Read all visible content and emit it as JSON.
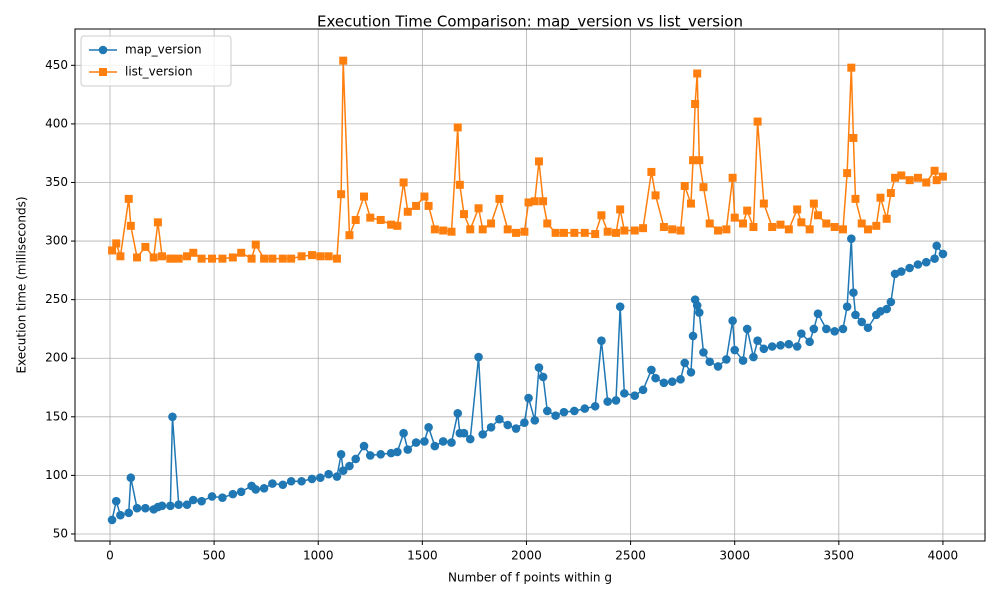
{
  "chart_data": {
    "type": "line",
    "title": "Execution Time Comparison: map_version vs list_version",
    "x_label": "Number of f points within g",
    "y_label": "Execution time (milliseconds)",
    "x": [
      10,
      30,
      50,
      90,
      100,
      130,
      170,
      210,
      230,
      250,
      290,
      300,
      330,
      370,
      400,
      440,
      490,
      540,
      590,
      630,
      680,
      700,
      740,
      780,
      830,
      870,
      920,
      970,
      1010,
      1050,
      1090,
      1110,
      1120,
      1150,
      1180,
      1220,
      1250,
      1300,
      1350,
      1380,
      1410,
      1430,
      1470,
      1510,
      1530,
      1560,
      1600,
      1640,
      1670,
      1680,
      1700,
      1730,
      1770,
      1790,
      1830,
      1870,
      1910,
      1950,
      1990,
      2010,
      2040,
      2060,
      2080,
      2100,
      2140,
      2180,
      2230,
      2280,
      2330,
      2360,
      2390,
      2430,
      2450,
      2470,
      2520,
      2560,
      2600,
      2620,
      2660,
      2700,
      2740,
      2760,
      2790,
      2800,
      2810,
      2820,
      2830,
      2850,
      2880,
      2920,
      2960,
      2990,
      3000,
      3040,
      3060,
      3090,
      3110,
      3140,
      3180,
      3220,
      3260,
      3300,
      3320,
      3360,
      3380,
      3400,
      3440,
      3480,
      3520,
      3540,
      3560,
      3570,
      3580,
      3610,
      3640,
      3680,
      3700,
      3730,
      3750,
      3770,
      3800,
      3840,
      3880,
      3920,
      3960,
      3970,
      4000
    ],
    "series": [
      {
        "name": "map_version",
        "color": "#1f77b4",
        "marker": "circle",
        "values": [
          62,
          78,
          66,
          68,
          98,
          72,
          72,
          71,
          73,
          74,
          74,
          150,
          75,
          75,
          79,
          78,
          82,
          81,
          84,
          86,
          91,
          88,
          89,
          93,
          92,
          95,
          95,
          97,
          98,
          101,
          99,
          118,
          104,
          108,
          114,
          125,
          117,
          118,
          119,
          120,
          136,
          122,
          128,
          129,
          141,
          125,
          129,
          128,
          153,
          136,
          136,
          131,
          201,
          135,
          141,
          148,
          143,
          140,
          145,
          166,
          147,
          192,
          184,
          155,
          151,
          154,
          155,
          157,
          159,
          215,
          163,
          164,
          244,
          170,
          168,
          173,
          190,
          183,
          179,
          180,
          182,
          196,
          188,
          219,
          250,
          245,
          239,
          205,
          197,
          193,
          199,
          232,
          207,
          198,
          225,
          201,
          215,
          208,
          210,
          211,
          212,
          210,
          221,
          214,
          225,
          238,
          225,
          223,
          225,
          244,
          302,
          256,
          237,
          231,
          226,
          237,
          240,
          242,
          248,
          272,
          274,
          277,
          280,
          282,
          285,
          296,
          289
        ]
      },
      {
        "name": "list_version",
        "color": "#ff7f0e",
        "marker": "square",
        "values": [
          292,
          298,
          287,
          336,
          313,
          286,
          295,
          286,
          316,
          287,
          285,
          285,
          285,
          287,
          290,
          285,
          285,
          285,
          286,
          290,
          285,
          297,
          285,
          285,
          285,
          285,
          287,
          288,
          287,
          287,
          285,
          340,
          454,
          305,
          318,
          338,
          320,
          318,
          314,
          313,
          350,
          325,
          330,
          338,
          330,
          310,
          309,
          308,
          397,
          348,
          323,
          310,
          328,
          310,
          315,
          336,
          310,
          307,
          308,
          333,
          334,
          368,
          334,
          315,
          307,
          307,
          307,
          307,
          306,
          322,
          308,
          307,
          327,
          309,
          309,
          311,
          359,
          339,
          312,
          310,
          309,
          347,
          332,
          369,
          417,
          443,
          369,
          346,
          315,
          309,
          310,
          354,
          320,
          315,
          326,
          312,
          402,
          332,
          312,
          314,
          310,
          327,
          316,
          310,
          332,
          322,
          315,
          312,
          310,
          358,
          448,
          388,
          336,
          315,
          310,
          313,
          337,
          319,
          341,
          354,
          356,
          352,
          354,
          350,
          360,
          352,
          355
        ]
      }
    ],
    "xlim": [
      -168,
      4202
    ],
    "ylim": [
      44,
      481
    ],
    "xticks": [
      0,
      500,
      1000,
      1500,
      2000,
      2500,
      3000,
      3500,
      4000
    ],
    "yticks": [
      50,
      100,
      150,
      200,
      250,
      300,
      350,
      400,
      450
    ],
    "grid": true,
    "legend": "upper left"
  }
}
